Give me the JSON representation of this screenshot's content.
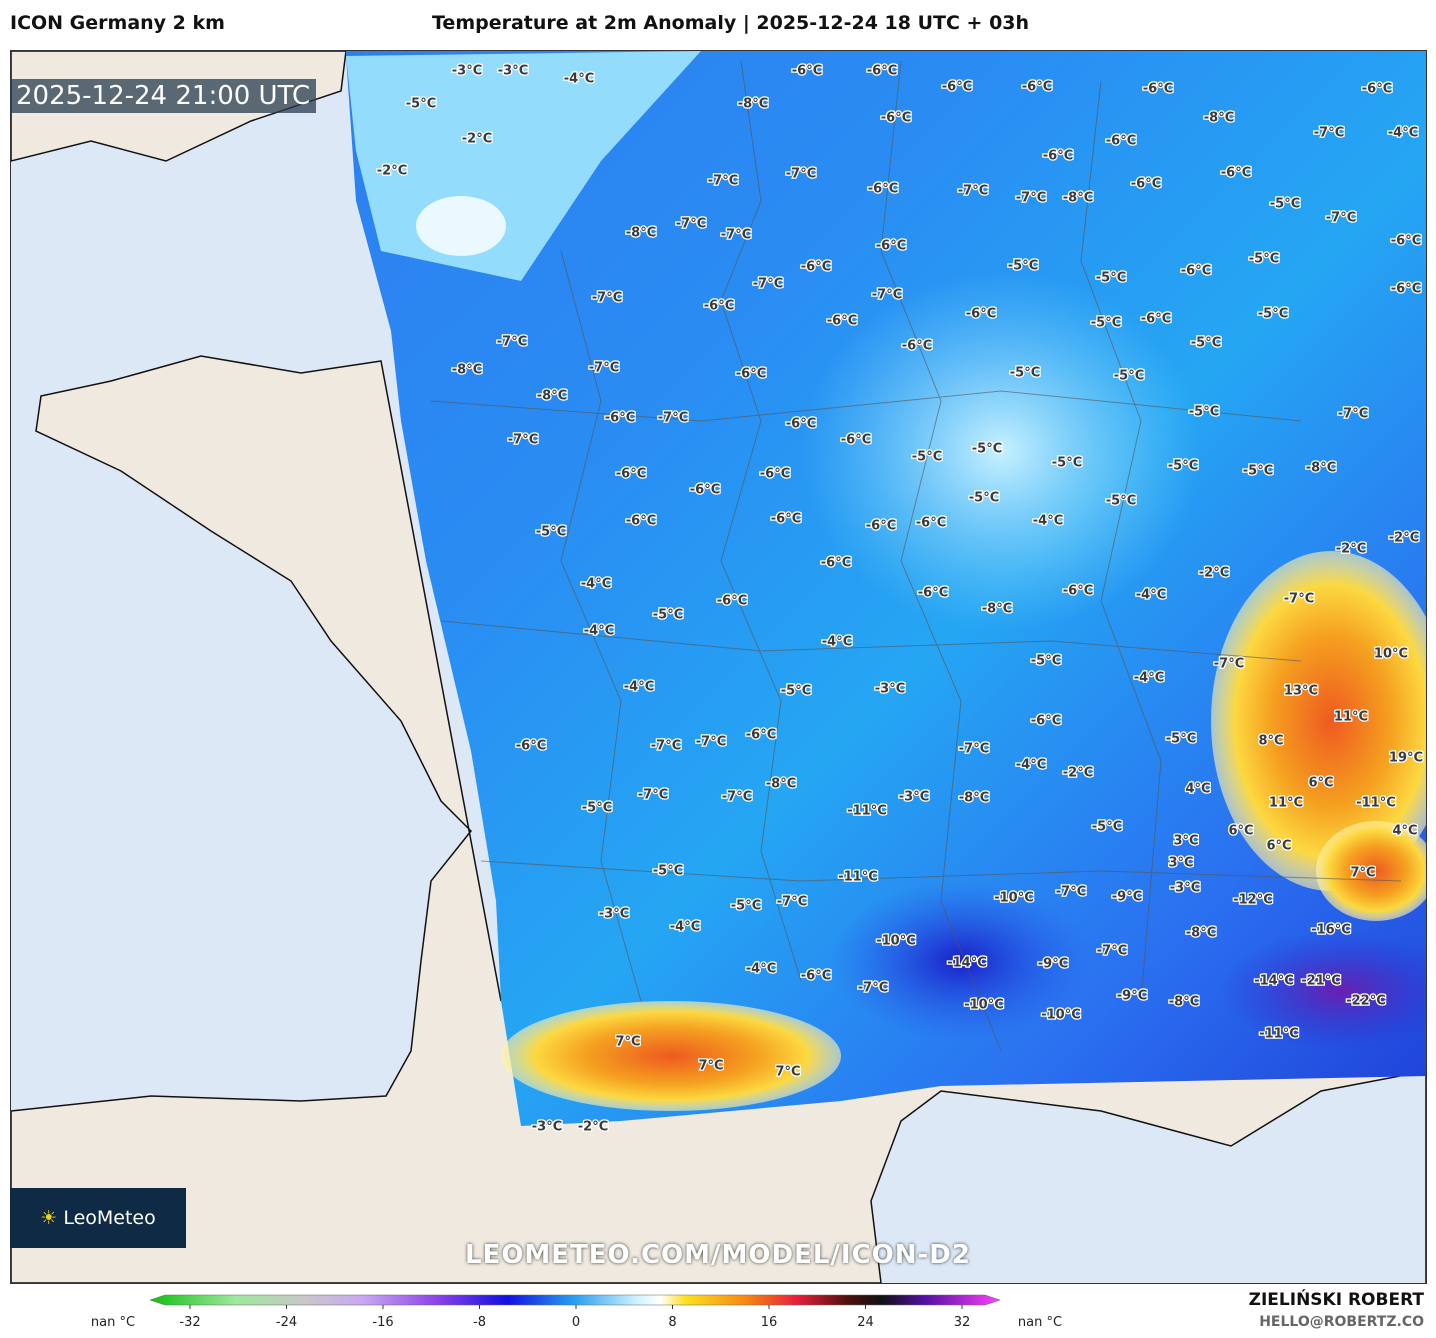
{
  "header": {
    "model": "ICON Germany 2 km",
    "title": "Temperature at 2m Anomaly | 2025-12-24 18 UTC + 03h"
  },
  "map": {
    "valid_time": "2025-12-24 21:00 UTC",
    "logo": "LeoMeteo",
    "watermark": "LEOMETEO.COM/MODEL/ICON-D2",
    "labels": [
      "-3°C",
      "-3°C",
      "-4°C",
      "-5°C",
      "-2°C",
      "-2°C",
      "-6°C",
      "-6°C",
      "-6°C",
      "-6°C",
      "-6°C",
      "-6°C",
      "-8°C",
      "-6°C",
      "-8°C",
      "-7°C",
      "-4°C",
      "-6°C",
      "-6°C",
      "-6°C",
      "-6°C",
      "-7°C",
      "-7°C",
      "-6°C",
      "-7°C",
      "-7°C",
      "-8°C",
      "-5°C",
      "-7°C",
      "-6°C",
      "-8°C",
      "-7°C",
      "-7°C",
      "-6°C",
      "-6°C",
      "-5°C",
      "-5°C",
      "-6°C",
      "-5°C",
      "-6°C",
      "-7°C",
      "-7°C",
      "-6°C",
      "-7°C",
      "-6°C",
      "-6°C",
      "-5°C",
      "-6°C",
      "-5°C",
      "-7°C",
      "-8°C",
      "-7°C",
      "-6°C",
      "-6°C",
      "-5°C",
      "-5°C",
      "-5°C",
      "-8°C",
      "-6°C",
      "-7°C",
      "-6°C",
      "-6°C",
      "-5°C",
      "-7°C",
      "-7°C",
      "-5°C",
      "-5°C",
      "-5°C",
      "-5°C",
      "-5°C",
      "-8°C",
      "-6°C",
      "-6°C",
      "-6°C",
      "-5°C",
      "-5°C",
      "-5°C",
      "-6°C",
      "-6°C",
      "-6°C",
      "-6°C",
      "-4°C",
      "-2°C",
      "-2°C",
      "-6°C",
      "-2°C",
      "-4°C",
      "-6°C",
      "-6°C",
      "-8°C",
      "-6°C",
      "-4°C",
      "-7°C",
      "-5°C",
      "-4°C",
      "-4°C",
      "-5°C",
      "-7°C",
      "10°C",
      "-4°C",
      "-5°C",
      "-3°C",
      "-4°C",
      "13°C",
      "11°C",
      "-6°C",
      "-6°C",
      "-7°C",
      "-7°C",
      "-6°C",
      "-7°C",
      "-5°C",
      "8°C",
      "19°C",
      "-4°C",
      "-2°C",
      "-8°C",
      "-7°C",
      "-7°C",
      "-3°C",
      "-8°C",
      "4°C",
      "6°C",
      "11°C",
      "-11°C",
      "-5°C",
      "-11°C",
      "-5°C",
      "6°C",
      "4°C",
      "3°C",
      "6°C",
      "-5°C",
      "-11°C",
      "3°C",
      "7°C",
      "-10°C",
      "-7°C",
      "-9°C",
      "-3°C",
      "-12°C",
      "-5°C",
      "-7°C",
      "-3°C",
      "-4°C",
      "-10°C",
      "-16°C",
      "-8°C",
      "-7°C",
      "-14°C",
      "-9°C",
      "-4°C",
      "-6°C",
      "-14°C",
      "-21°C",
      "-7°C",
      "-9°C",
      "-8°C",
      "-22°C",
      "-10°C",
      "-10°C",
      "-11°C",
      "7°C",
      "7°C",
      "7°C",
      "-3°C",
      "-2°C"
    ]
  },
  "colorbar": {
    "nan_left": "nan °C",
    "nan_right": "nan °C",
    "ticks": [
      -32,
      -24,
      -16,
      -8,
      0,
      8,
      16,
      24,
      32
    ]
  },
  "footer": {
    "author": "ZIELIŃSKI ROBERT",
    "email": "HELLO@ROBERTZ.CO"
  }
}
